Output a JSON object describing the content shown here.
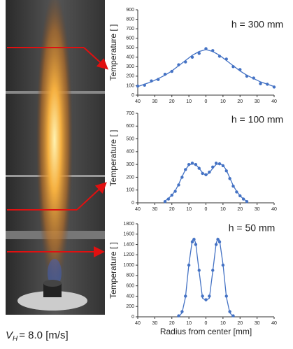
{
  "caption": {
    "symbol": "V",
    "subscript": "H",
    "text": "=  8.0 [m/s]"
  },
  "chart_data": [
    {
      "type": "scatter",
      "label": "h = 300 mm",
      "ylabel": "Temperature [   ]",
      "color": "#4472c4",
      "x": [
        -40,
        -36,
        -32,
        -28,
        -24,
        -20,
        -16,
        -12,
        -8,
        -4,
        0,
        4,
        8,
        12,
        16,
        20,
        24,
        28,
        32,
        36,
        40
      ],
      "values": [
        95,
        105,
        150,
        165,
        220,
        250,
        320,
        350,
        400,
        440,
        490,
        470,
        410,
        380,
        300,
        270,
        200,
        180,
        120,
        115,
        85
      ],
      "fit_values": [
        90,
        115,
        140,
        175,
        210,
        255,
        310,
        365,
        420,
        460,
        480,
        460,
        420,
        365,
        310,
        255,
        210,
        175,
        140,
        115,
        90
      ],
      "xlim": [
        -40,
        40
      ],
      "xticks": [
        {
          "value": -40,
          "label": "40"
        },
        {
          "value": -30,
          "label": "30"
        },
        {
          "value": -20,
          "label": "20"
        },
        {
          "value": -10,
          "label": "10"
        },
        0,
        10,
        20,
        30,
        40
      ],
      "ylim": [
        0,
        900
      ],
      "yticks": [
        0,
        100,
        200,
        300,
        400,
        500,
        600,
        700,
        800,
        900
      ]
    },
    {
      "type": "scatter",
      "label": "h = 100 mm",
      "ylabel": "Temperature [   ]",
      "color": "#4472c4",
      "x": [
        -24,
        -22,
        -20,
        -18,
        -16,
        -14,
        -12,
        -10,
        -8,
        -6,
        -4,
        -2,
        0,
        2,
        4,
        6,
        8,
        10,
        12,
        14,
        16,
        18,
        20,
        22,
        24
      ],
      "values": [
        10,
        30,
        60,
        90,
        140,
        200,
        260,
        300,
        310,
        300,
        270,
        230,
        220,
        240,
        280,
        310,
        305,
        290,
        250,
        190,
        130,
        85,
        55,
        30,
        10
      ],
      "fit_values": [
        15,
        35,
        60,
        95,
        145,
        205,
        260,
        295,
        305,
        300,
        270,
        235,
        215,
        235,
        270,
        300,
        305,
        295,
        255,
        195,
        135,
        90,
        55,
        30,
        12
      ],
      "xlim": [
        -40,
        40
      ],
      "xticks": [
        {
          "value": -40,
          "label": "40"
        },
        {
          "value": -30,
          "label": "30"
        },
        {
          "value": -20,
          "label": "20"
        },
        {
          "value": -10,
          "label": "10"
        },
        0,
        10,
        20,
        30,
        40
      ],
      "ylim": [
        0,
        700
      ],
      "yticks": [
        0,
        100,
        200,
        300,
        400,
        500,
        600,
        700
      ]
    },
    {
      "type": "scatter",
      "label": "h = 50 mm",
      "ylabel": "Temperature [   ]",
      "xlabel": "Radius from center [mm]",
      "color": "#4472c4",
      "x": [
        -16,
        -14,
        -12,
        -10,
        -8,
        -7,
        -6,
        -4,
        -2,
        0,
        2,
        4,
        6,
        7,
        8,
        10,
        12,
        14,
        16
      ],
      "values": [
        20,
        100,
        400,
        1000,
        1450,
        1500,
        1400,
        900,
        400,
        330,
        400,
        900,
        1400,
        1500,
        1450,
        1000,
        400,
        100,
        20
      ],
      "fit_values": [
        0,
        80,
        380,
        1020,
        1480,
        1520,
        1420,
        880,
        360,
        320,
        360,
        880,
        1420,
        1520,
        1480,
        1020,
        380,
        80,
        0
      ],
      "xlim": [
        -40,
        40
      ],
      "xticks": [
        {
          "value": -40,
          "label": "40"
        },
        {
          "value": -30,
          "label": "30"
        },
        {
          "value": -20,
          "label": "20"
        },
        {
          "value": -10,
          "label": "10"
        },
        0,
        10,
        20,
        30,
        40
      ],
      "ylim": [
        0,
        1800
      ],
      "yticks": [
        0,
        200,
        400,
        600,
        800,
        1000,
        1200,
        1400,
        1600,
        1800
      ]
    }
  ]
}
